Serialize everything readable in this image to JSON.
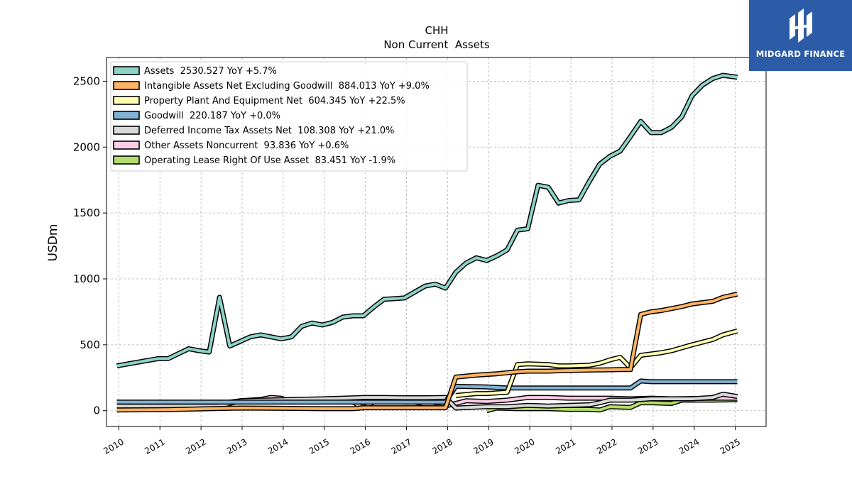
{
  "brand": {
    "name": "MIDGARD FINANCE",
    "bg_color": "#2c5ba8"
  },
  "chart_data": {
    "type": "line",
    "title": "CHH",
    "subtitle": "Non Current  Assets",
    "ylabel": "USDm",
    "xlabel": "",
    "xlim": [
      2009.7,
      2025.75
    ],
    "ylim": [
      -120,
      2680
    ],
    "x_ticks": [
      2010,
      2011,
      2012,
      2013,
      2014,
      2015,
      2016,
      2017,
      2018,
      2019,
      2020,
      2021,
      2022,
      2023,
      2024,
      2025
    ],
    "y_ticks": [
      0,
      500,
      1000,
      1500,
      2000,
      2500
    ],
    "grid": true,
    "legend_position": "top-left",
    "series": [
      {
        "name": "Assets",
        "legend_label": "Assets  2530.527 YoY +5.7%",
        "color": "#8dd3c7",
        "points": [
          [
            2009.95,
            340
          ],
          [
            2010.95,
            395
          ],
          [
            2011.2,
            395
          ],
          [
            2011.7,
            470
          ],
          [
            2011.95,
            455
          ],
          [
            2012.2,
            445
          ],
          [
            2012.45,
            860
          ],
          [
            2012.7,
            490
          ],
          [
            2012.95,
            525
          ],
          [
            2013.2,
            560
          ],
          [
            2013.45,
            575
          ],
          [
            2013.7,
            560
          ],
          [
            2013.95,
            545
          ],
          [
            2014.2,
            560
          ],
          [
            2014.45,
            640
          ],
          [
            2014.7,
            665
          ],
          [
            2014.95,
            650
          ],
          [
            2015.2,
            670
          ],
          [
            2015.45,
            710
          ],
          [
            2015.7,
            720
          ],
          [
            2015.95,
            720
          ],
          [
            2016.2,
            785
          ],
          [
            2016.45,
            845
          ],
          [
            2016.7,
            850
          ],
          [
            2016.95,
            855
          ],
          [
            2017.2,
            900
          ],
          [
            2017.45,
            945
          ],
          [
            2017.7,
            960
          ],
          [
            2017.95,
            930
          ],
          [
            2018.2,
            1050
          ],
          [
            2018.45,
            1120
          ],
          [
            2018.7,
            1160
          ],
          [
            2018.95,
            1140
          ],
          [
            2019.2,
            1175
          ],
          [
            2019.45,
            1220
          ],
          [
            2019.7,
            1370
          ],
          [
            2019.95,
            1380
          ],
          [
            2020.2,
            1710
          ],
          [
            2020.45,
            1695
          ],
          [
            2020.7,
            1575
          ],
          [
            2020.95,
            1595
          ],
          [
            2021.2,
            1600
          ],
          [
            2021.45,
            1740
          ],
          [
            2021.7,
            1870
          ],
          [
            2021.95,
            1930
          ],
          [
            2022.2,
            1970
          ],
          [
            2022.45,
            2080
          ],
          [
            2022.7,
            2195
          ],
          [
            2022.95,
            2110
          ],
          [
            2023.2,
            2110
          ],
          [
            2023.45,
            2150
          ],
          [
            2023.7,
            2230
          ],
          [
            2023.95,
            2390
          ],
          [
            2024.2,
            2470
          ],
          [
            2024.45,
            2520
          ],
          [
            2024.7,
            2545
          ],
          [
            2025.05,
            2530
          ]
        ]
      },
      {
        "name": "Intangible Assets Net Excluding Goodwill",
        "legend_label": "Intangible Assets Net Excluding Goodwill  884.013 YoY +9.0%",
        "color": "#fdb462",
        "points": [
          [
            2009.95,
            5
          ],
          [
            2011.2,
            8
          ],
          [
            2012.2,
            15
          ],
          [
            2012.95,
            20
          ],
          [
            2013.95,
            18
          ],
          [
            2014.95,
            15
          ],
          [
            2015.7,
            15
          ],
          [
            2015.95,
            22
          ],
          [
            2016.95,
            22
          ],
          [
            2017.95,
            22
          ],
          [
            2018.2,
            255
          ],
          [
            2018.7,
            270
          ],
          [
            2018.95,
            275
          ],
          [
            2019.2,
            280
          ],
          [
            2019.7,
            295
          ],
          [
            2019.95,
            300
          ],
          [
            2020.45,
            300
          ],
          [
            2020.95,
            305
          ],
          [
            2021.45,
            308
          ],
          [
            2021.95,
            310
          ],
          [
            2022.2,
            312
          ],
          [
            2022.45,
            312
          ],
          [
            2022.7,
            730
          ],
          [
            2022.95,
            750
          ],
          [
            2023.2,
            760
          ],
          [
            2023.7,
            790
          ],
          [
            2023.95,
            810
          ],
          [
            2024.45,
            830
          ],
          [
            2024.7,
            860
          ],
          [
            2025.05,
            885
          ]
        ]
      },
      {
        "name": "Property Plant And Equipment Net",
        "legend_label": "Property Plant And Equipment Net  604.345 YoY +22.5%",
        "color": "#ffffb3",
        "points": [
          [
            2018.2,
            115
          ],
          [
            2018.7,
            130
          ],
          [
            2018.95,
            130
          ],
          [
            2019.45,
            140
          ],
          [
            2019.7,
            350
          ],
          [
            2019.95,
            355
          ],
          [
            2020.45,
            350
          ],
          [
            2020.7,
            340
          ],
          [
            2020.95,
            340
          ],
          [
            2021.45,
            345
          ],
          [
            2021.7,
            360
          ],
          [
            2021.95,
            385
          ],
          [
            2022.2,
            405
          ],
          [
            2022.45,
            325
          ],
          [
            2022.7,
            420
          ],
          [
            2022.95,
            430
          ],
          [
            2023.2,
            440
          ],
          [
            2023.45,
            455
          ],
          [
            2023.95,
            500
          ],
          [
            2024.45,
            540
          ],
          [
            2024.7,
            575
          ],
          [
            2025.05,
            605
          ]
        ]
      },
      {
        "name": "Goodwill",
        "legend_label": "Goodwill  220.187 YoY +0.0%",
        "color": "#80b1d3",
        "points": [
          [
            2009.95,
            65
          ],
          [
            2017.95,
            65
          ],
          [
            2018.2,
            185
          ],
          [
            2018.95,
            180
          ],
          [
            2019.45,
            172
          ],
          [
            2019.95,
            172
          ],
          [
            2020.95,
            172
          ],
          [
            2021.95,
            172
          ],
          [
            2022.45,
            172
          ],
          [
            2022.7,
            225
          ],
          [
            2022.95,
            220
          ],
          [
            2025.05,
            220
          ]
        ]
      },
      {
        "name": "Deferred Income Tax Assets Net",
        "legend_label": "Deferred Income Tax Assets Net  108.308 YoY +21.0%",
        "color": "#d9d9d9",
        "points": [
          [
            2009.95,
            35
          ],
          [
            2011.95,
            35
          ],
          [
            2012.45,
            35
          ],
          [
            2012.95,
            75
          ],
          [
            2013.45,
            80
          ],
          [
            2014.95,
            90
          ],
          [
            2015.45,
            95
          ],
          [
            2015.95,
            100
          ],
          [
            2016.45,
            100
          ],
          [
            2016.95,
            98
          ],
          [
            2017.45,
            98
          ],
          [
            2017.95,
            100
          ],
          [
            2018.2,
            20
          ],
          [
            2018.95,
            30
          ],
          [
            2019.45,
            30
          ],
          [
            2019.95,
            40
          ],
          [
            2020.45,
            35
          ],
          [
            2020.95,
            40
          ],
          [
            2021.45,
            45
          ],
          [
            2021.7,
            60
          ],
          [
            2021.95,
            80
          ],
          [
            2022.45,
            80
          ],
          [
            2022.95,
            90
          ],
          [
            2023.45,
            90
          ],
          [
            2023.95,
            90
          ],
          [
            2024.45,
            100
          ],
          [
            2024.7,
            125
          ],
          [
            2025.05,
            108
          ]
        ]
      },
      {
        "name": "Other Assets Noncurrent",
        "legend_label": "Other Assets Noncurrent  93.836 YoY +0.6%",
        "color": "#fccde5",
        "points": [
          [
            2009.95,
            10
          ],
          [
            2010.95,
            20
          ],
          [
            2011.45,
            30
          ],
          [
            2011.95,
            40
          ],
          [
            2012.45,
            55
          ],
          [
            2012.95,
            75
          ],
          [
            2013.45,
            85
          ],
          [
            2013.7,
            100
          ],
          [
            2013.95,
            95
          ],
          [
            2014.2,
            65
          ],
          [
            2014.45,
            70
          ],
          [
            2014.95,
            75
          ],
          [
            2015.45,
            70
          ],
          [
            2015.7,
            65
          ],
          [
            2015.95,
            20
          ],
          [
            2016.2,
            65
          ],
          [
            2016.45,
            70
          ],
          [
            2016.95,
            65
          ],
          [
            2017.2,
            65
          ],
          [
            2017.45,
            50
          ],
          [
            2017.7,
            30
          ],
          [
            2017.95,
            35
          ],
          [
            2018.45,
            75
          ],
          [
            2018.95,
            70
          ],
          [
            2019.45,
            80
          ],
          [
            2019.95,
            100
          ],
          [
            2020.45,
            100
          ],
          [
            2020.95,
            95
          ],
          [
            2021.45,
            95
          ],
          [
            2021.95,
            95
          ],
          [
            2022.45,
            90
          ],
          [
            2022.95,
            95
          ],
          [
            2023.45,
            90
          ],
          [
            2023.95,
            92
          ],
          [
            2024.45,
            95
          ],
          [
            2025.05,
            94
          ]
        ]
      },
      {
        "name": "Operating Lease Right Of Use Asset",
        "legend_label": "Operating Lease Right Of Use Asset  83.451 YoY -1.9%",
        "color": "#b3de69",
        "points": [
          [
            2018.95,
            0
          ],
          [
            2019.2,
            20
          ],
          [
            2019.7,
            15
          ],
          [
            2019.95,
            15
          ],
          [
            2020.45,
            15
          ],
          [
            2020.95,
            10
          ],
          [
            2021.45,
            10
          ],
          [
            2021.7,
            5
          ],
          [
            2021.95,
            30
          ],
          [
            2022.45,
            25
          ],
          [
            2022.7,
            60
          ],
          [
            2022.95,
            60
          ],
          [
            2023.45,
            55
          ],
          [
            2023.7,
            80
          ],
          [
            2023.95,
            80
          ],
          [
            2024.45,
            80
          ],
          [
            2025.05,
            83
          ]
        ]
      }
    ]
  }
}
